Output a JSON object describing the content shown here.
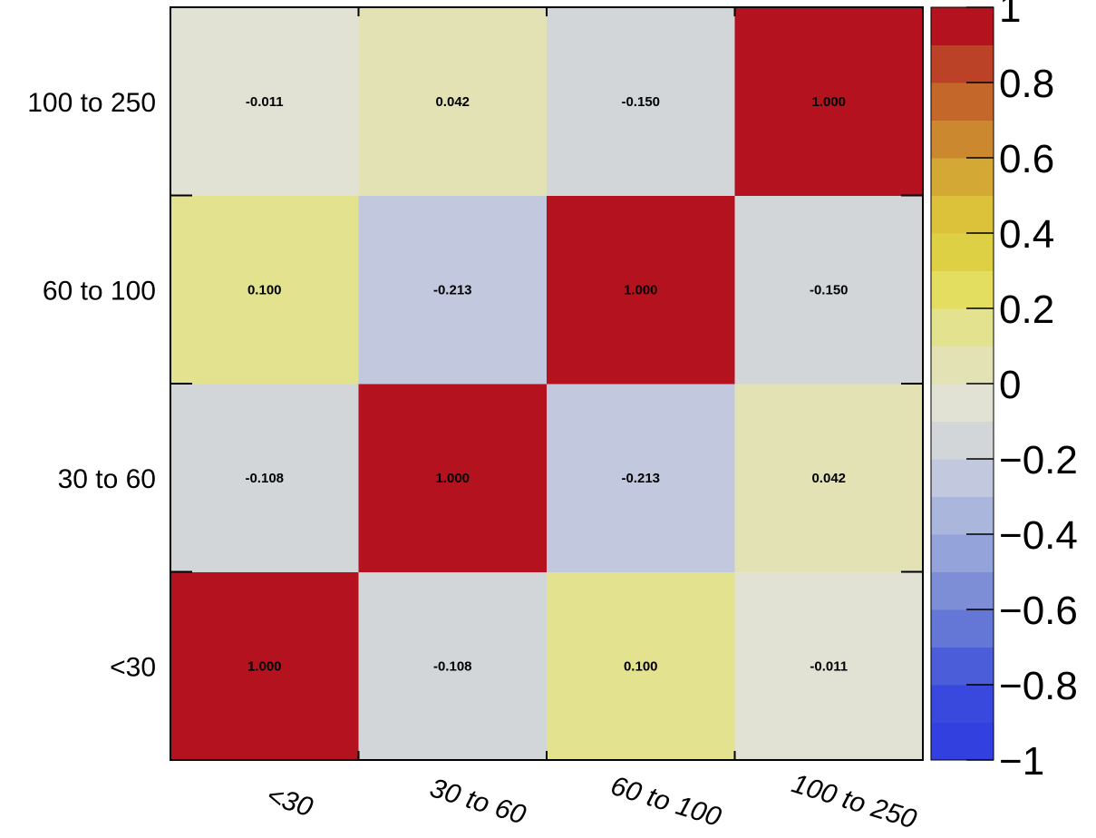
{
  "chart_data": {
    "type": "heatmap",
    "title": "",
    "x_categories": [
      "<30",
      "30 to 60",
      "60 to 100",
      "100 to 250"
    ],
    "y_categories": [
      "<30",
      "30 to 60",
      "60 to 100",
      "100 to 250"
    ],
    "matrix": [
      [
        1.0,
        -0.108,
        0.1,
        -0.011
      ],
      [
        -0.108,
        1.0,
        -0.213,
        0.042
      ],
      [
        0.1,
        -0.213,
        1.0,
        -0.15
      ],
      [
        -0.011,
        0.042,
        -0.15,
        1.0
      ]
    ],
    "cell_labels": [
      [
        "1.000",
        "-0.108",
        "0.100",
        "-0.011"
      ],
      [
        "-0.108",
        "1.000",
        "-0.213",
        "0.042"
      ],
      [
        "0.100",
        "-0.213",
        "1.000",
        "-0.150"
      ],
      [
        "-0.011",
        "0.042",
        "-0.150",
        "1.000"
      ]
    ],
    "zlim": [
      -1,
      1
    ],
    "z_tick_values": [
      1,
      0.8,
      0.6,
      0.4,
      0.2,
      0,
      -0.2,
      -0.4,
      -0.6,
      -0.8,
      -1
    ],
    "z_tick_labels": [
      "1",
      "0.8",
      "0.6",
      "0.4",
      "0.2",
      "0",
      "−0.2",
      "−0.4",
      "−0.6",
      "−0.8",
      "−1"
    ],
    "palette": [
      "#3340e0",
      "#3a49dd",
      "#4c5dd9",
      "#6477d6",
      "#7d8ed6",
      "#94a3d9",
      "#aab6dc",
      "#c2c9df",
      "#d2d6d8",
      "#e1e2d4",
      "#e3e2b4",
      "#e3e28e",
      "#e3dd60",
      "#ddd044",
      "#dcc23a",
      "#d4a834",
      "#cb882f",
      "#c3682a",
      "#bb4226",
      "#b4121f"
    ],
    "colorbar": "right",
    "grid": false
  }
}
